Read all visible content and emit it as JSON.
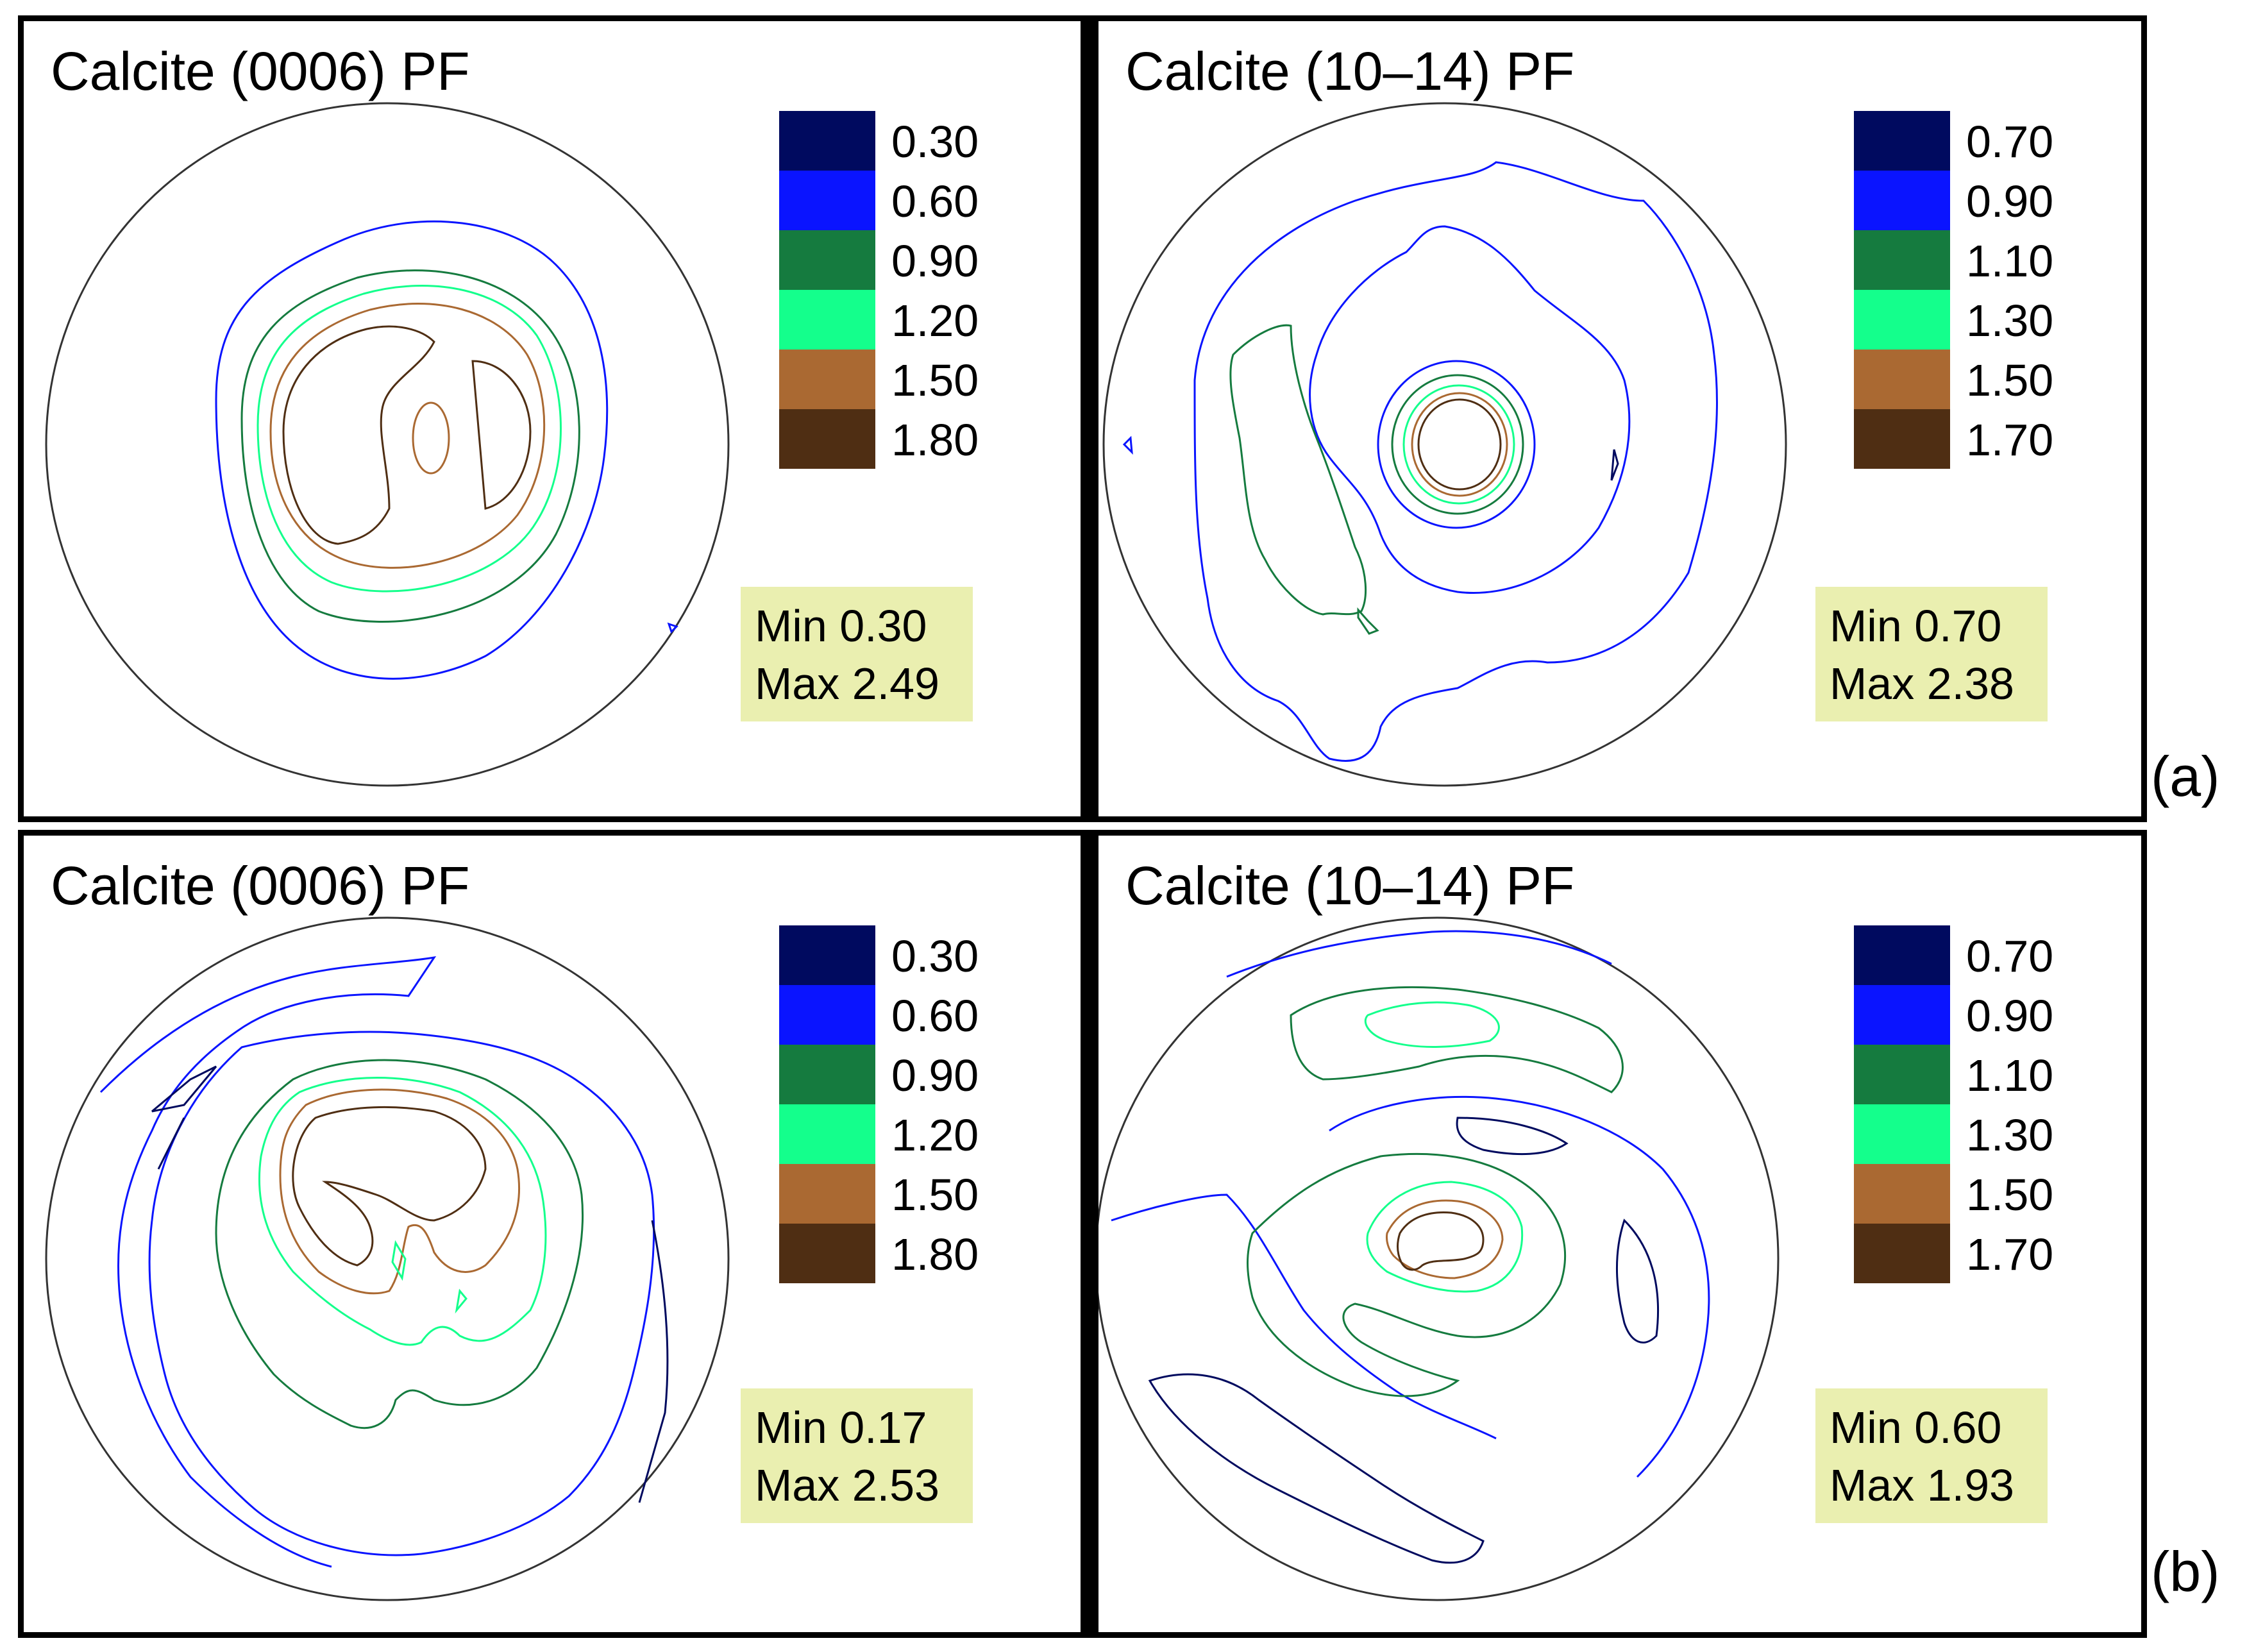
{
  "figure": {
    "rows": [
      {
        "label": "(a)",
        "panels": [
          {
            "title": "Calcite (0006) PF",
            "legend_values": [
              "0.30",
              "0.60",
              "0.90",
              "1.20",
              "1.50",
              "1.80"
            ],
            "min_text": "Min 0.30",
            "max_text": "Max 2.49"
          },
          {
            "title": "Calcite (10–14) PF",
            "legend_values": [
              "0.70",
              "0.90",
              "1.10",
              "1.30",
              "1.50",
              "1.70"
            ],
            "min_text": "Min 0.70",
            "max_text": "Max 2.38"
          }
        ]
      },
      {
        "label": "(b)",
        "panels": [
          {
            "title": "Calcite (0006) PF",
            "legend_values": [
              "0.30",
              "0.60",
              "0.90",
              "1.20",
              "1.50",
              "1.80"
            ],
            "min_text": "Min 0.17",
            "max_text": "Max 2.53"
          },
          {
            "title": "Calcite (10–14) PF",
            "legend_values": [
              "0.70",
              "0.90",
              "1.10",
              "1.30",
              "1.50",
              "1.70"
            ],
            "min_text": "Min 0.60",
            "max_text": "Max 1.93"
          }
        ]
      }
    ]
  },
  "colors": {
    "level_1": "#000a5f",
    "level_2": "#0a14ff",
    "level_3": "#157b3f",
    "level_4": "#14ff8c",
    "level_5": "#aa6932",
    "level_6": "#4f2e13",
    "stats_background": "#eaefb0",
    "circle": "#333333"
  },
  "chart_data": [
    {
      "type": "contour",
      "title": "Calcite (0006) PF",
      "row": "(a)",
      "levels": [
        0.3,
        0.6,
        0.9,
        1.2,
        1.5,
        1.8
      ],
      "min": 0.3,
      "max": 2.49,
      "description_projection": "pole figure"
    },
    {
      "type": "contour",
      "title": "Calcite (10–14) PF",
      "row": "(a)",
      "levels": [
        0.7,
        0.9,
        1.1,
        1.3,
        1.5,
        1.7
      ],
      "min": 0.7,
      "max": 2.38,
      "description_projection": "pole figure"
    },
    {
      "type": "contour",
      "title": "Calcite (0006) PF",
      "row": "(b)",
      "levels": [
        0.3,
        0.6,
        0.9,
        1.2,
        1.5,
        1.8
      ],
      "min": 0.17,
      "max": 2.53,
      "description_projection": "pole figure"
    },
    {
      "type": "contour",
      "title": "Calcite (10–14) PF",
      "row": "(b)",
      "levels": [
        0.7,
        0.9,
        1.1,
        1.3,
        1.5,
        1.7
      ],
      "min": 0.6,
      "max": 1.93,
      "description_projection": "pole figure"
    }
  ]
}
